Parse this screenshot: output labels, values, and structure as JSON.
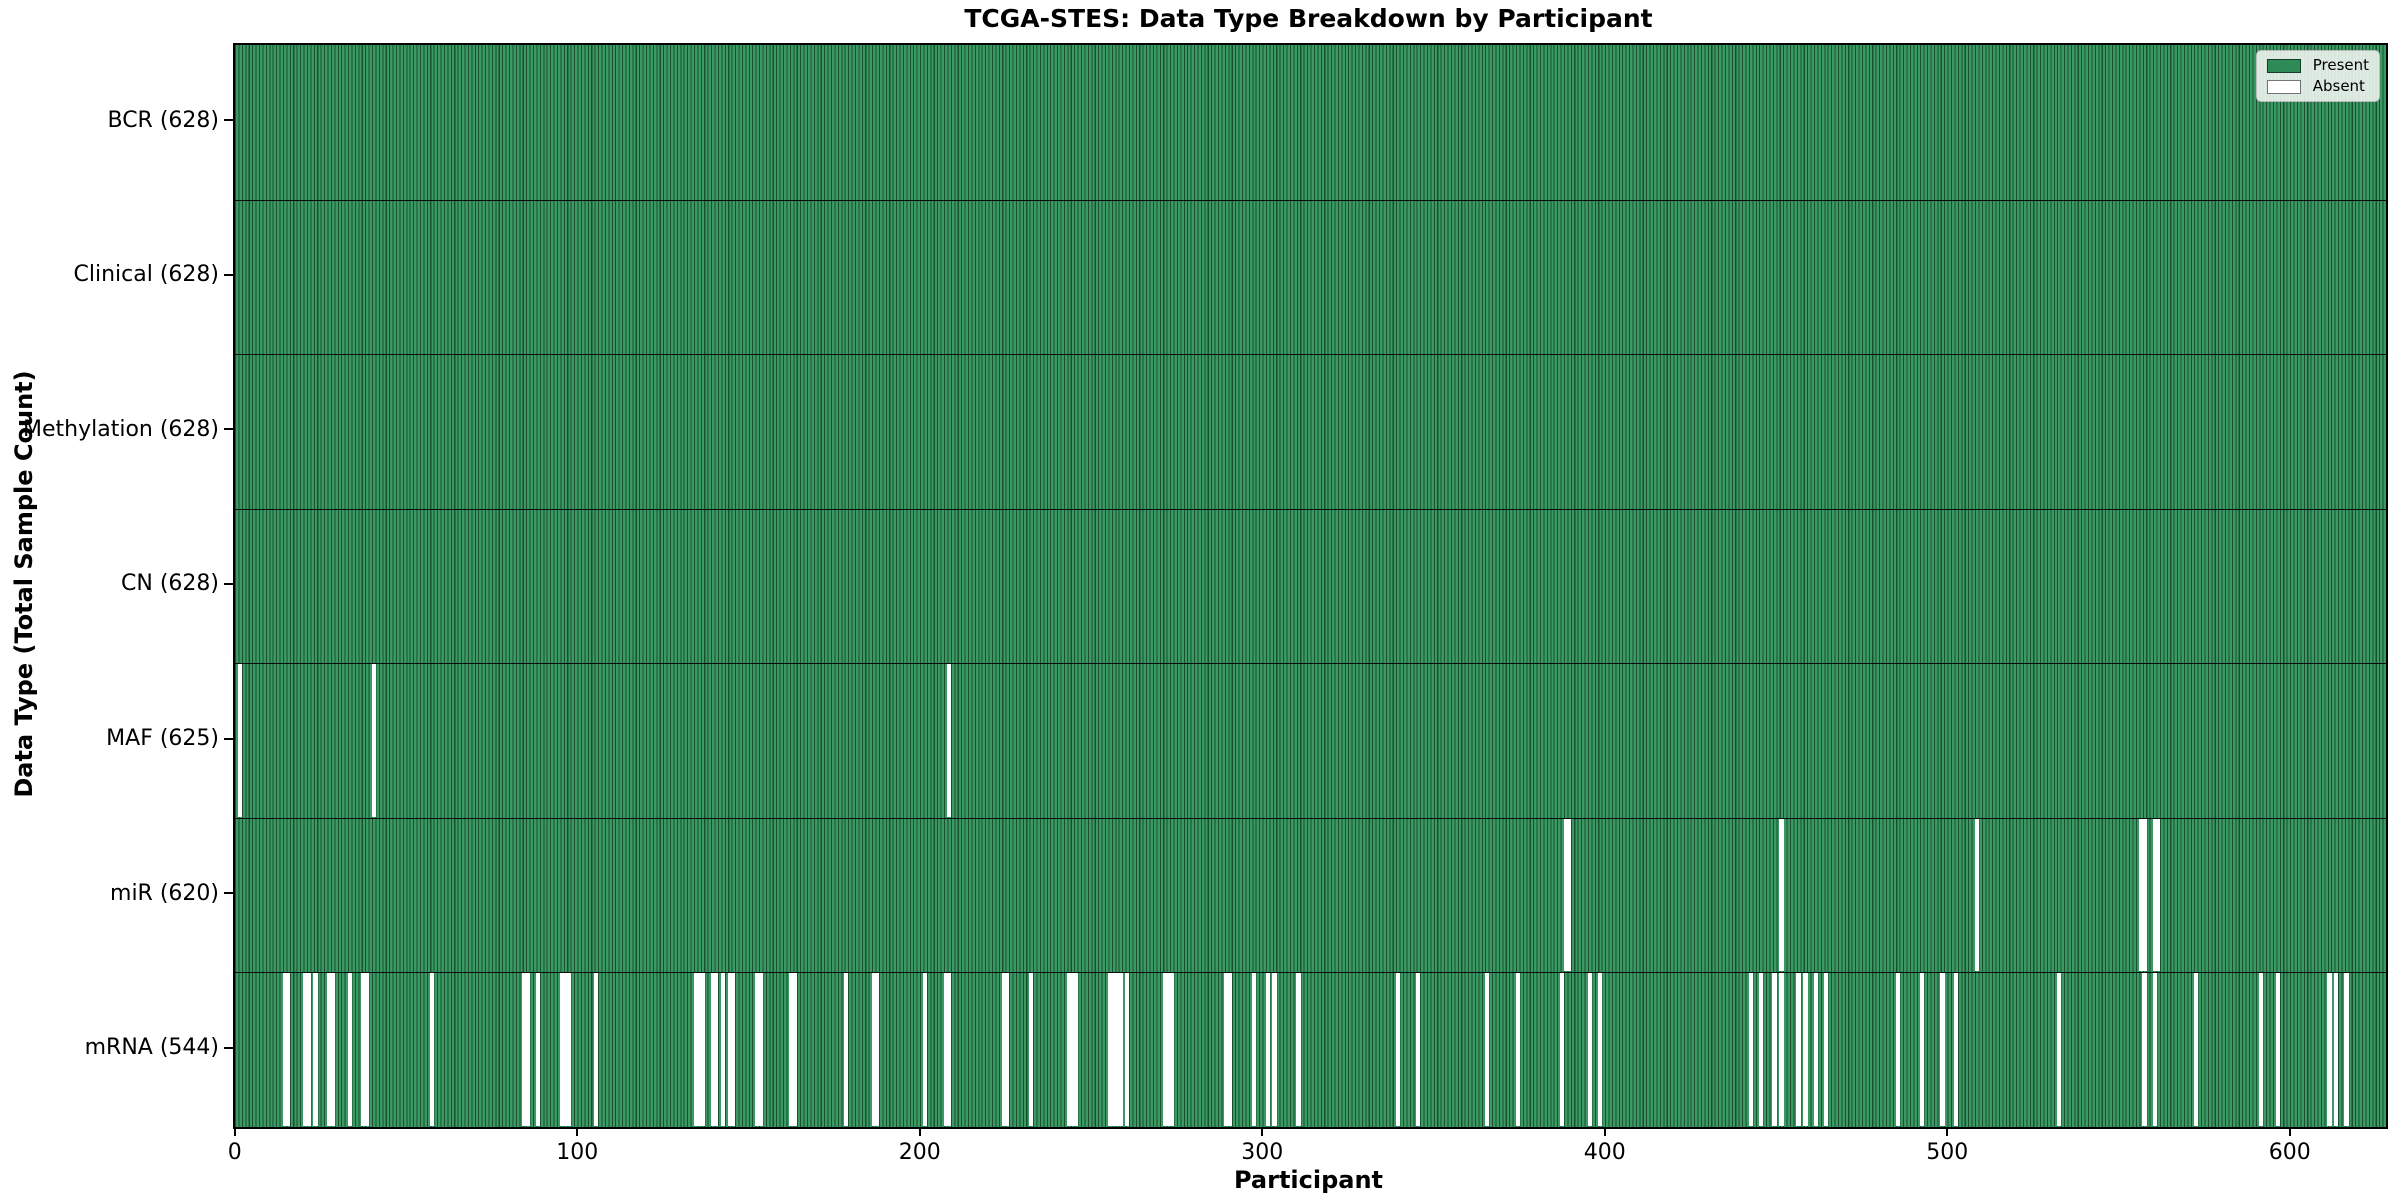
{
  "title": "TCGA-STES: Data Type Breakdown by Participant",
  "xlabel": "Participant",
  "ylabel": "Data Type (Total Sample Count)",
  "legend": {
    "present_label": "Present",
    "absent_label": "Absent"
  },
  "colors": {
    "present": "#2e8b57",
    "present_stripe_light": "#3b9a64",
    "present_stripe_dark": "#1a4f30",
    "absent": "#ffffff",
    "row_divider": "#0b0b0b"
  },
  "chart_data": {
    "type": "heatmap",
    "title": "TCGA-STES: Data Type Breakdown by Participant",
    "xlabel": "Participant",
    "ylabel": "Data Type (Total Sample Count)",
    "legend": [
      "Present",
      "Absent"
    ],
    "legend_position": "upper right",
    "n_participants": 628,
    "x_ticks": [
      0,
      100,
      200,
      300,
      400,
      500,
      600
    ],
    "x_tick_labels": [
      "0",
      "100",
      "200",
      "300",
      "400",
      "500",
      "600"
    ],
    "rows": [
      {
        "label": "BCR (628)",
        "data_type": "BCR",
        "total": 628,
        "absent": []
      },
      {
        "label": "Clinical (628)",
        "data_type": "Clinical",
        "total": 628,
        "absent": []
      },
      {
        "label": "Methylation (628)",
        "data_type": "Methylation",
        "total": 628,
        "absent": []
      },
      {
        "label": "CN (628)",
        "data_type": "CN",
        "total": 628,
        "absent": []
      },
      {
        "label": "MAF (625)",
        "data_type": "MAF",
        "total": 625,
        "absent": [
          1,
          40,
          208
        ]
      },
      {
        "label": "miR (620)",
        "data_type": "miR",
        "total": 620,
        "absent": [
          388,
          389,
          451,
          508,
          556,
          557,
          560,
          561
        ]
      },
      {
        "label": "mRNA (544)",
        "data_type": "mRNA",
        "total": 544,
        "absent": [
          14,
          15,
          20,
          21,
          23,
          27,
          28,
          33,
          37,
          38,
          57,
          84,
          85,
          88,
          95,
          96,
          97,
          105,
          134,
          135,
          136,
          139,
          140,
          142,
          144,
          145,
          152,
          153,
          162,
          163,
          178,
          186,
          187,
          201,
          207,
          208,
          224,
          225,
          232,
          243,
          244,
          245,
          255,
          256,
          257,
          258,
          260,
          271,
          272,
          273,
          289,
          290,
          297,
          301,
          303,
          310,
          339,
          345,
          365,
          374,
          387,
          395,
          398,
          442,
          445,
          449,
          451,
          456,
          458,
          461,
          464,
          485,
          492,
          498,
          502,
          532,
          557,
          560,
          572,
          591,
          596,
          611,
          613,
          616
        ]
      }
    ]
  }
}
